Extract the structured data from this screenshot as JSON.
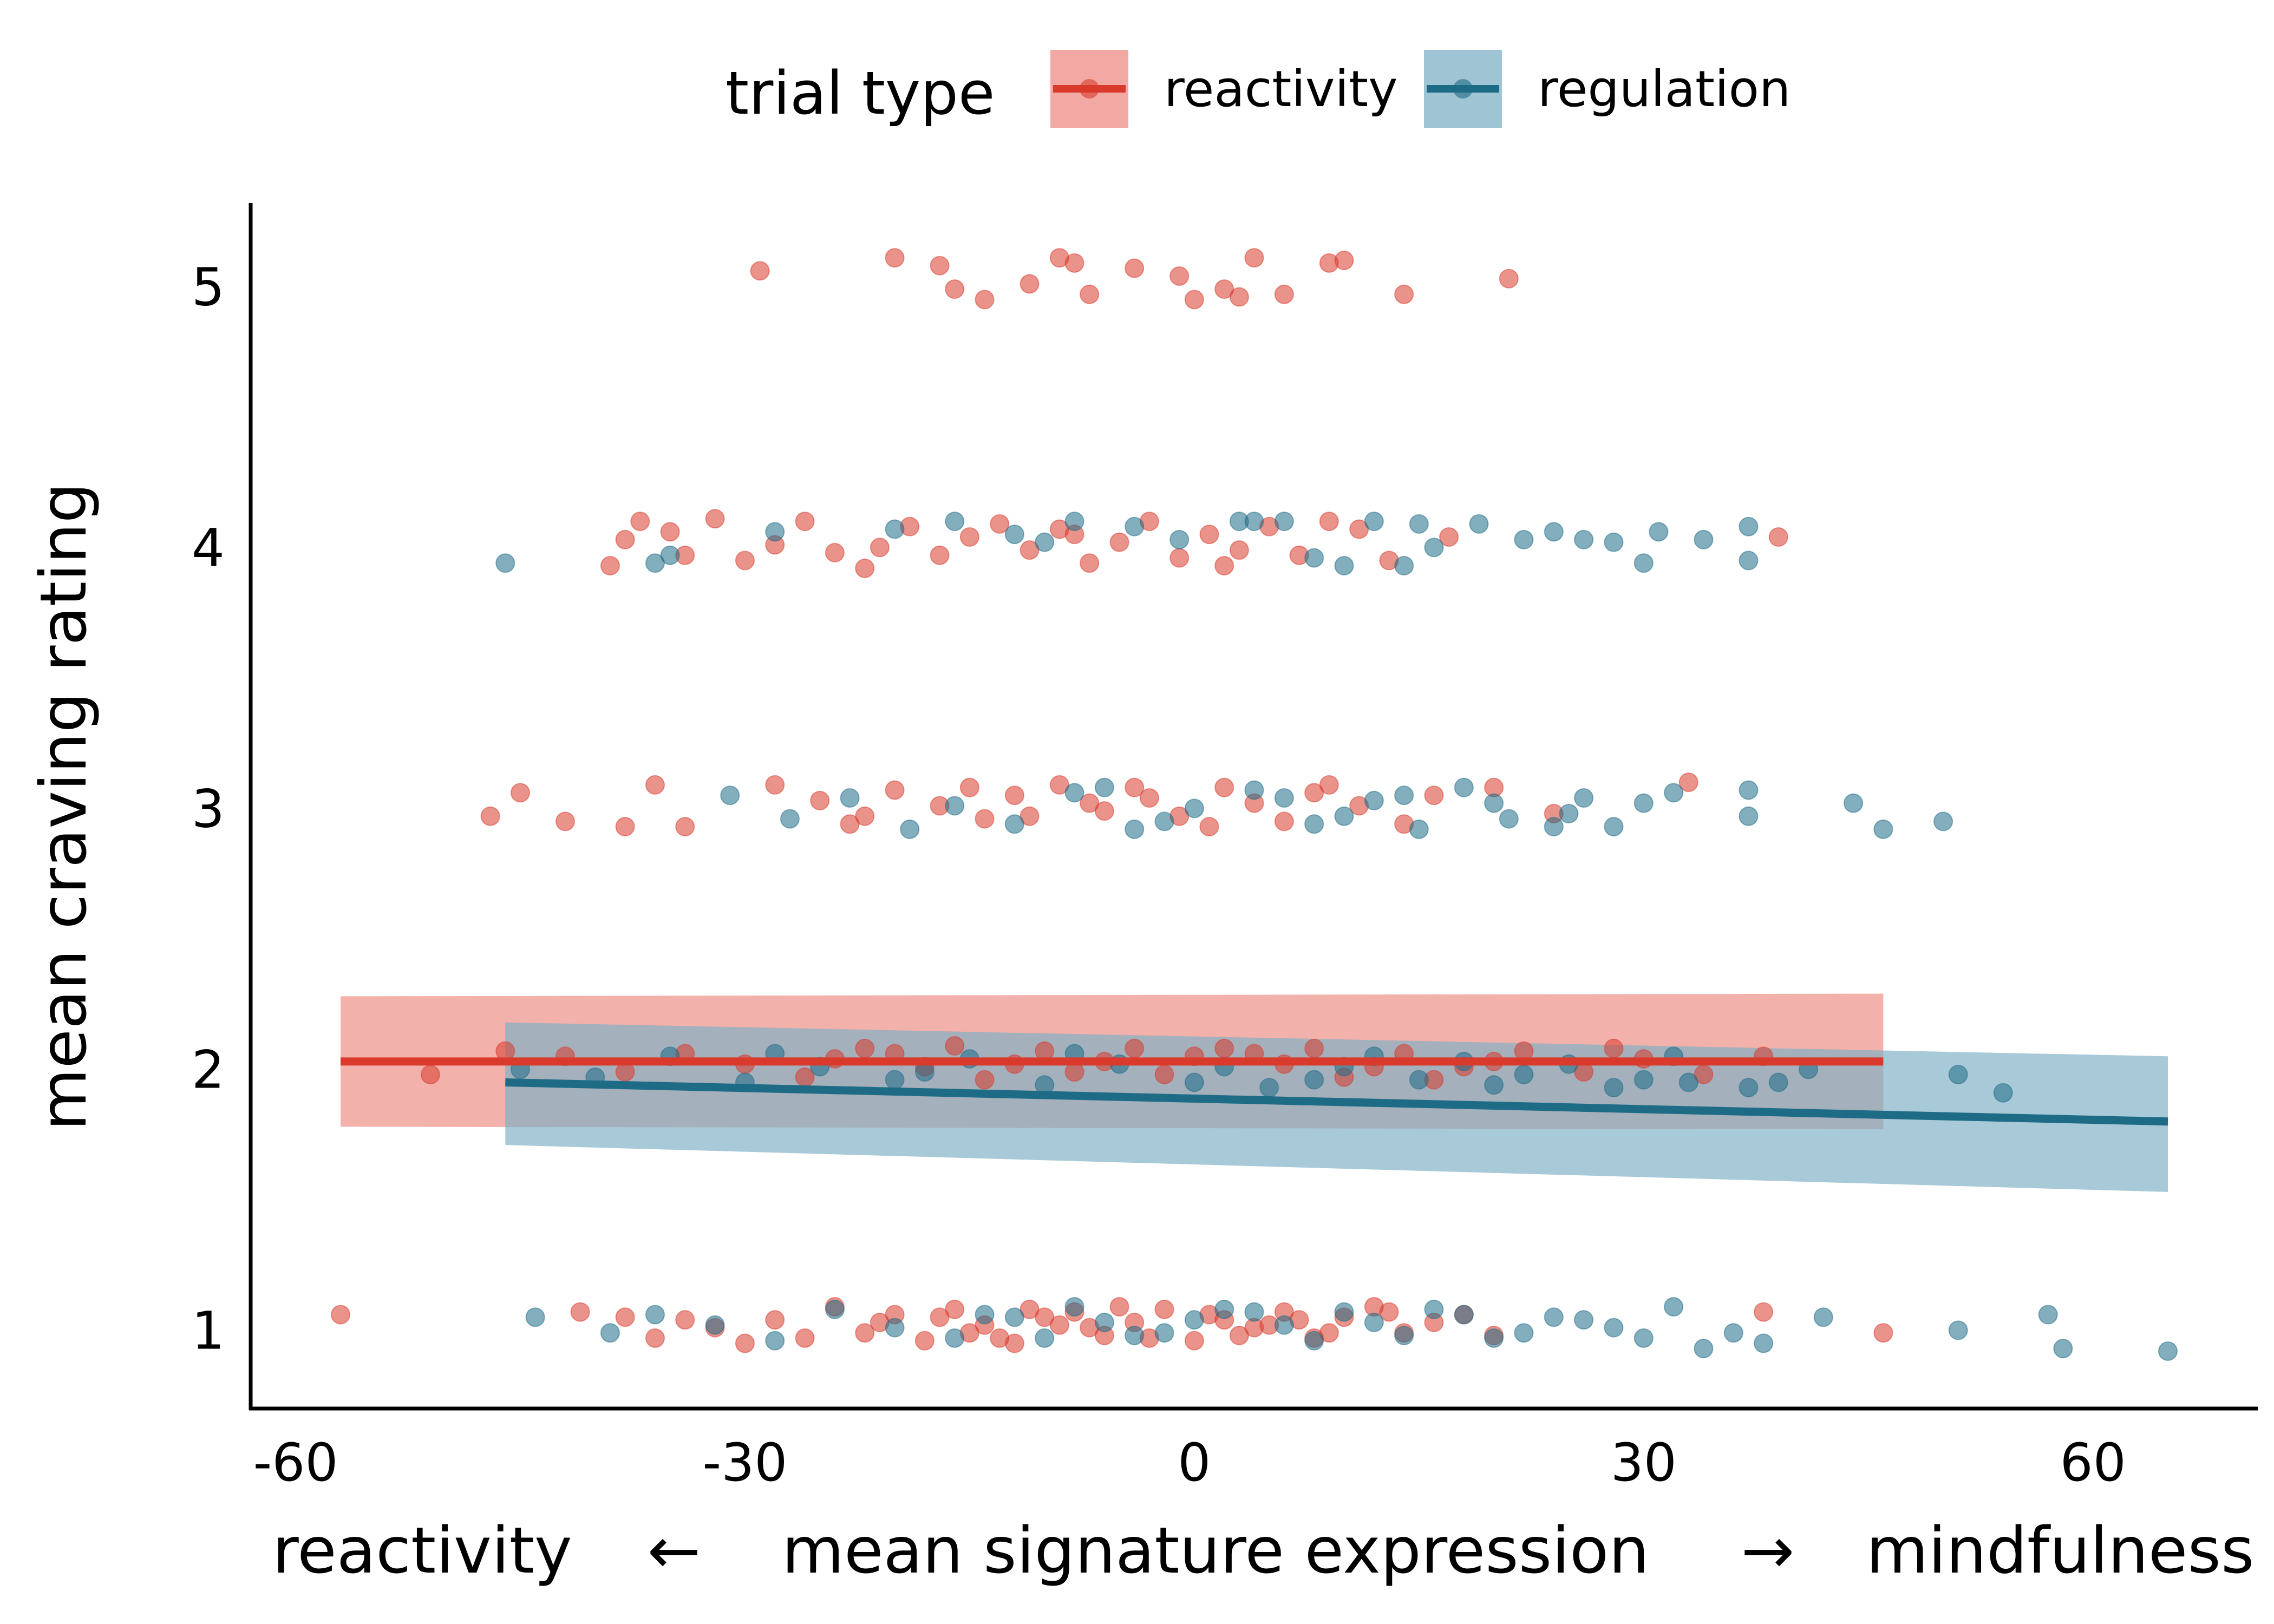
{
  "legend": {
    "title": "trial type",
    "items": [
      {
        "label": "reactivity",
        "color": "#d93a2b",
        "ribbon": "#ee8c84"
      },
      {
        "label": "regulation",
        "color": "#1e6b86",
        "ribbon": "#7fb0c4"
      }
    ]
  },
  "chart_data": {
    "type": "scatter",
    "xlabel": {
      "left": "reactivity",
      "arrow_left": "←",
      "center": "mean signature expression",
      "arrow_right": "→",
      "right": "mindfulness"
    },
    "ylabel": "mean craving rating",
    "x_ticks": [
      -60,
      -30,
      0,
      30,
      60
    ],
    "y_ticks": [
      1,
      2,
      3,
      4,
      5
    ],
    "xlim": [
      -63,
      71
    ],
    "ylim": [
      0.7,
      5.32
    ],
    "grid": false,
    "legend_position": "top",
    "point_alpha": 0.55,
    "series": [
      {
        "name": "reactivity",
        "color": "#d93a2b",
        "fit_line": {
          "x": [
            -57,
            46
          ],
          "y": [
            2.03,
            2.03
          ]
        },
        "ci_band": {
          "x": [
            -57,
            46
          ],
          "upper": [
            2.28,
            2.29
          ],
          "lower": [
            1.78,
            1.77
          ]
        },
        "points": [
          [
            -57,
            1.06
          ],
          [
            -41,
            1.07
          ],
          [
            -38,
            1.05
          ],
          [
            -36,
            0.97
          ],
          [
            -34,
            1.04
          ],
          [
            -32,
            1.01
          ],
          [
            -30,
            0.95
          ],
          [
            -28,
            1.04
          ],
          [
            -26,
            0.97
          ],
          [
            -24,
            1.09
          ],
          [
            -22,
            0.99
          ],
          [
            -20,
            1.06
          ],
          [
            -18,
            0.96
          ],
          [
            -16,
            1.08
          ],
          [
            -14,
            1.02
          ],
          [
            -12,
            0.95
          ],
          [
            -10,
            1.05
          ],
          [
            -8,
            1.07
          ],
          [
            -6,
            0.98
          ],
          [
            -4,
            1.03
          ],
          [
            -2,
            1.08
          ],
          [
            0,
            0.96
          ],
          [
            2,
            1.04
          ],
          [
            4,
            1.01
          ],
          [
            6,
            1.07
          ],
          [
            8,
            0.97
          ],
          [
            10,
            1.05
          ],
          [
            12,
            1.09
          ],
          [
            14,
            0.99
          ],
          [
            16,
            1.03
          ],
          [
            18,
            1.06
          ],
          [
            20,
            0.98
          ],
          [
            -21,
            1.03
          ],
          [
            -15,
            0.99
          ],
          [
            -11,
            1.08
          ],
          [
            -7,
            1.01
          ],
          [
            -3,
            0.97
          ],
          [
            1,
            1.06
          ],
          [
            5,
            1.02
          ],
          [
            9,
            0.99
          ],
          [
            13,
            1.07
          ],
          [
            -17,
            1.05
          ],
          [
            -13,
            0.97
          ],
          [
            -9,
            1.02
          ],
          [
            -5,
            1.09
          ],
          [
            3,
            0.98
          ],
          [
            7,
            1.04
          ],
          [
            38,
            1.07
          ],
          [
            46,
            0.99
          ],
          [
            -51,
            1.98
          ],
          [
            -46,
            2.07
          ],
          [
            -42,
            2.05
          ],
          [
            -38,
            1.99
          ],
          [
            -34,
            2.06
          ],
          [
            -30,
            2.02
          ],
          [
            -26,
            1.97
          ],
          [
            -22,
            2.08
          ],
          [
            -18,
            2.01
          ],
          [
            -14,
            1.96
          ],
          [
            -10,
            2.07
          ],
          [
            -6,
            2.03
          ],
          [
            -2,
            1.98
          ],
          [
            2,
            2.08
          ],
          [
            6,
            2.02
          ],
          [
            10,
            1.97
          ],
          [
            14,
            2.06
          ],
          [
            18,
            2.01
          ],
          [
            22,
            2.07
          ],
          [
            26,
            1.99
          ],
          [
            30,
            2.04
          ],
          [
            34,
            1.98
          ],
          [
            38,
            2.05
          ],
          [
            -24,
            2.04
          ],
          [
            -16,
            2.09
          ],
          [
            -8,
            1.99
          ],
          [
            0,
            2.05
          ],
          [
            8,
            2.08
          ],
          [
            16,
            1.96
          ],
          [
            -12,
            2.02
          ],
          [
            4,
            2.06
          ],
          [
            12,
            2.01
          ],
          [
            -4,
            2.08
          ],
          [
            20,
            2.03
          ],
          [
            -20,
            2.06
          ],
          [
            28,
            2.08
          ],
          [
            -47,
            2.97
          ],
          [
            -45,
            3.06
          ],
          [
            -42,
            2.95
          ],
          [
            -38,
            2.93
          ],
          [
            -36,
            3.09
          ],
          [
            -34,
            2.93
          ],
          [
            -28,
            3.09
          ],
          [
            -25,
            3.03
          ],
          [
            -22,
            2.97
          ],
          [
            -20,
            3.07
          ],
          [
            -17,
            3.01
          ],
          [
            -14,
            2.96
          ],
          [
            -12,
            3.05
          ],
          [
            -9,
            3.09
          ],
          [
            -6,
            2.99
          ],
          [
            -3,
            3.04
          ],
          [
            -1,
            2.97
          ],
          [
            2,
            3.08
          ],
          [
            4,
            3.02
          ],
          [
            6,
            2.95
          ],
          [
            8,
            3.06
          ],
          [
            11,
            3.01
          ],
          [
            14,
            2.94
          ],
          [
            16,
            3.05
          ],
          [
            20,
            3.08
          ],
          [
            24,
            2.98
          ],
          [
            33,
            3.1
          ],
          [
            -23,
            2.94
          ],
          [
            -15,
            3.08
          ],
          [
            -7,
            3.02
          ],
          [
            1,
            2.93
          ],
          [
            9,
            3.09
          ],
          [
            -11,
            2.97
          ],
          [
            -4,
            3.08
          ],
          [
            -39,
            3.93
          ],
          [
            -38,
            4.03
          ],
          [
            -37,
            4.1
          ],
          [
            -35,
            4.06
          ],
          [
            -34,
            3.97
          ],
          [
            -32,
            4.11
          ],
          [
            -30,
            3.95
          ],
          [
            -28,
            4.01
          ],
          [
            -26,
            4.1
          ],
          [
            -24,
            3.98
          ],
          [
            -22,
            3.92
          ],
          [
            -19,
            4.08
          ],
          [
            -17,
            3.97
          ],
          [
            -15,
            4.04
          ],
          [
            -13,
            4.09
          ],
          [
            -11,
            3.99
          ],
          [
            -9,
            4.07
          ],
          [
            -7,
            3.94
          ],
          [
            -5,
            4.02
          ],
          [
            -3,
            4.1
          ],
          [
            -1,
            3.96
          ],
          [
            1,
            4.05
          ],
          [
            3,
            3.99
          ],
          [
            5,
            4.08
          ],
          [
            7,
            3.97
          ],
          [
            9,
            4.1
          ],
          [
            13,
            3.95
          ],
          [
            17,
            4.04
          ],
          [
            39,
            4.04
          ],
          [
            -21,
            4.0
          ],
          [
            -8,
            4.05
          ],
          [
            2,
            3.93
          ],
          [
            11,
            4.07
          ],
          [
            -29,
            5.06
          ],
          [
            -20,
            5.11
          ],
          [
            -17,
            5.08
          ],
          [
            -16,
            4.99
          ],
          [
            -14,
            4.95
          ],
          [
            -11,
            5.01
          ],
          [
            -9,
            5.11
          ],
          [
            -7,
            4.97
          ],
          [
            -4,
            5.07
          ],
          [
            -1,
            5.04
          ],
          [
            0,
            4.95
          ],
          [
            2,
            4.99
          ],
          [
            4,
            5.11
          ],
          [
            6,
            4.97
          ],
          [
            9,
            5.09
          ],
          [
            14,
            4.97
          ],
          [
            21,
            5.03
          ],
          [
            -8,
            5.09
          ],
          [
            3,
            4.96
          ],
          [
            10,
            5.1
          ]
        ]
      },
      {
        "name": "regulation",
        "color": "#1e6b86",
        "fit_line": {
          "x": [
            -46,
            65
          ],
          "y": [
            1.95,
            1.8
          ]
        },
        "ci_band": {
          "x": [
            -46,
            65
          ],
          "upper": [
            2.18,
            2.05
          ],
          "lower": [
            1.71,
            1.53
          ]
        },
        "points": [
          [
            -44,
            1.05
          ],
          [
            -39,
            0.99
          ],
          [
            -36,
            1.06
          ],
          [
            -32,
            1.02
          ],
          [
            -28,
            0.96
          ],
          [
            -24,
            1.08
          ],
          [
            -20,
            1.01
          ],
          [
            -16,
            0.97
          ],
          [
            -12,
            1.05
          ],
          [
            -8,
            1.09
          ],
          [
            -4,
            0.98
          ],
          [
            0,
            1.04
          ],
          [
            4,
            1.07
          ],
          [
            8,
            0.96
          ],
          [
            12,
            1.03
          ],
          [
            16,
            1.08
          ],
          [
            20,
            0.97
          ],
          [
            24,
            1.05
          ],
          [
            28,
            1.01
          ],
          [
            32,
            1.09
          ],
          [
            34,
            0.93
          ],
          [
            36,
            0.99
          ],
          [
            38,
            0.95
          ],
          [
            42,
            1.05
          ],
          [
            51,
            1.0
          ],
          [
            57,
            1.06
          ],
          [
            58,
            0.93
          ],
          [
            65,
            0.92
          ],
          [
            14,
            0.98
          ],
          [
            18,
            1.06
          ],
          [
            22,
            0.99
          ],
          [
            26,
            1.04
          ],
          [
            30,
            0.97
          ],
          [
            6,
            1.02
          ],
          [
            10,
            1.07
          ],
          [
            -2,
            0.99
          ],
          [
            2,
            1.08
          ],
          [
            -6,
            1.03
          ],
          [
            -10,
            0.97
          ],
          [
            -14,
            1.06
          ],
          [
            -45,
            2.0
          ],
          [
            -40,
            1.97
          ],
          [
            -35,
            2.05
          ],
          [
            -30,
            1.95
          ],
          [
            -25,
            2.01
          ],
          [
            -20,
            1.96
          ],
          [
            -15,
            2.04
          ],
          [
            -10,
            1.94
          ],
          [
            -5,
            2.02
          ],
          [
            0,
            1.95
          ],
          [
            5,
            1.93
          ],
          [
            10,
            2.01
          ],
          [
            15,
            1.96
          ],
          [
            20,
            1.94
          ],
          [
            25,
            2.02
          ],
          [
            30,
            1.96
          ],
          [
            33,
            1.95
          ],
          [
            37,
            1.93
          ],
          [
            39,
            1.95
          ],
          [
            41,
            2.0
          ],
          [
            51,
            1.98
          ],
          [
            54,
            1.91
          ],
          [
            -28,
            2.06
          ],
          [
            -18,
            1.99
          ],
          [
            -8,
            2.06
          ],
          [
            2,
            2.01
          ],
          [
            12,
            2.05
          ],
          [
            22,
            1.98
          ],
          [
            32,
            2.05
          ],
          [
            8,
            1.96
          ],
          [
            18,
            2.03
          ],
          [
            28,
            1.93
          ],
          [
            -31,
            3.05
          ],
          [
            -27,
            2.96
          ],
          [
            -23,
            3.04
          ],
          [
            -19,
            2.92
          ],
          [
            -16,
            3.01
          ],
          [
            -12,
            2.94
          ],
          [
            -8,
            3.06
          ],
          [
            -4,
            2.92
          ],
          [
            0,
            3.0
          ],
          [
            4,
            3.07
          ],
          [
            8,
            2.94
          ],
          [
            12,
            3.03
          ],
          [
            15,
            2.92
          ],
          [
            18,
            3.08
          ],
          [
            21,
            2.96
          ],
          [
            24,
            2.93
          ],
          [
            26,
            3.04
          ],
          [
            28,
            2.93
          ],
          [
            30,
            3.02
          ],
          [
            32,
            3.06
          ],
          [
            37,
            3.07
          ],
          [
            37,
            2.97
          ],
          [
            44,
            3.02
          ],
          [
            46,
            2.92
          ],
          [
            50,
            2.95
          ],
          [
            6,
            3.04
          ],
          [
            10,
            2.97
          ],
          [
            14,
            3.05
          ],
          [
            -2,
            2.95
          ],
          [
            -6,
            3.08
          ],
          [
            20,
            3.02
          ],
          [
            25,
            2.98
          ],
          [
            -46,
            3.94
          ],
          [
            -36,
            3.94
          ],
          [
            -35,
            3.97
          ],
          [
            -28,
            4.06
          ],
          [
            -20,
            4.07
          ],
          [
            -16,
            4.1
          ],
          [
            -12,
            4.05
          ],
          [
            -8,
            4.1
          ],
          [
            -4,
            4.08
          ],
          [
            -1,
            4.03
          ],
          [
            3,
            4.1
          ],
          [
            6,
            4.1
          ],
          [
            8,
            3.96
          ],
          [
            10,
            3.93
          ],
          [
            12,
            4.1
          ],
          [
            14,
            3.93
          ],
          [
            16,
            4.0
          ],
          [
            19,
            4.09
          ],
          [
            22,
            4.03
          ],
          [
            24,
            4.06
          ],
          [
            26,
            4.03
          ],
          [
            28,
            4.02
          ],
          [
            30,
            3.94
          ],
          [
            31,
            4.06
          ],
          [
            34,
            4.03
          ],
          [
            37,
            4.08
          ],
          [
            37,
            3.95
          ],
          [
            4,
            4.1
          ],
          [
            -10,
            4.02
          ],
          [
            15,
            4.09
          ]
        ]
      }
    ]
  }
}
